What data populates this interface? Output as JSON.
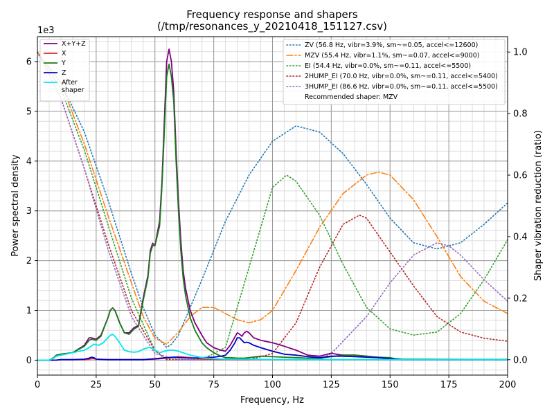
{
  "chart_data": {
    "type": "line",
    "title": "Frequency response and shapers",
    "subtitle": "(/tmp/resonances_y_20210418_151127.csv)",
    "xlabel": "Frequency, Hz",
    "ylabel": "Power spectral density",
    "ylabel_right": "Shaper vibration reduction (ratio)",
    "y_multiplier_label": "1e3",
    "xlim": [
      0,
      200
    ],
    "ylim": [
      -0.3,
      6.5
    ],
    "ylim_right": [
      -0.05,
      1.05
    ],
    "grid": true,
    "x_ticks": [
      "0",
      "25",
      "50",
      "75",
      "100",
      "125",
      "150",
      "175",
      "200"
    ],
    "y_ticks": [
      "0",
      "1",
      "2",
      "3",
      "4",
      "5",
      "6"
    ],
    "y_ticks_right": [
      "0.0",
      "0.2",
      "0.4",
      "0.6",
      "0.8",
      "1.0"
    ],
    "legend_left_placement": "top-left",
    "legend_right_placement": "top-right",
    "psd_series": [
      {
        "name": "X+Y+Z",
        "color": "#800080",
        "x": [
          0,
          5,
          7,
          8,
          10,
          15,
          20,
          22,
          23,
          25,
          27,
          30,
          31,
          32,
          33,
          35,
          37,
          39,
          41,
          43,
          45,
          47,
          48,
          49,
          50,
          52,
          53,
          54,
          55,
          56,
          57,
          58,
          59,
          60,
          61,
          62,
          63,
          65,
          67,
          70,
          72,
          75,
          78,
          80,
          82,
          85,
          86,
          87,
          88,
          89,
          90,
          92,
          95,
          100,
          105,
          110,
          115,
          120,
          125,
          127,
          130,
          135,
          140,
          145,
          150,
          152,
          155,
          200
        ],
        "y": [
          0,
          0,
          0.05,
          0.1,
          0.12,
          0.15,
          0.3,
          0.45,
          0.45,
          0.42,
          0.5,
          0.85,
          1.0,
          1.05,
          1.0,
          0.75,
          0.55,
          0.55,
          0.65,
          0.7,
          1.25,
          1.7,
          2.2,
          2.35,
          2.3,
          2.8,
          3.6,
          4.8,
          6.0,
          6.25,
          6.0,
          5.4,
          4.2,
          3.2,
          2.4,
          1.8,
          1.45,
          1.0,
          0.75,
          0.5,
          0.35,
          0.25,
          0.2,
          0.18,
          0.3,
          0.55,
          0.52,
          0.48,
          0.55,
          0.58,
          0.55,
          0.45,
          0.4,
          0.35,
          0.28,
          0.2,
          0.1,
          0.08,
          0.14,
          0.12,
          0.1,
          0.1,
          0.08,
          0.05,
          0.04,
          0.02,
          0.01,
          0.01
        ]
      },
      {
        "name": "X",
        "color": "#d62728",
        "x": [
          0,
          8,
          10,
          20,
          22,
          23,
          24,
          25,
          30,
          40,
          45,
          50,
          55,
          58,
          60,
          65,
          70,
          75,
          80,
          90,
          100,
          110,
          120,
          150,
          200
        ],
        "y": [
          0,
          0,
          0.01,
          0.01,
          0.02,
          0.03,
          0.03,
          0.02,
          0.01,
          0.01,
          0.01,
          0.02,
          0.04,
          0.06,
          0.07,
          0.05,
          0.03,
          0.02,
          0.02,
          0.02,
          0.01,
          0.01,
          0.01,
          0.01,
          0.01
        ]
      },
      {
        "name": "Y",
        "color": "#1a7a1a",
        "x": [
          0,
          5,
          7,
          8,
          10,
          15,
          20,
          22,
          23,
          25,
          27,
          30,
          31,
          32,
          33,
          35,
          37,
          39,
          41,
          43,
          45,
          47,
          48,
          49,
          50,
          52,
          53,
          54,
          55,
          56,
          57,
          58,
          59,
          60,
          61,
          62,
          63,
          65,
          67,
          70,
          72,
          75,
          78,
          80,
          82,
          85,
          88,
          90,
          95,
          100,
          105,
          110,
          115,
          120,
          125,
          130,
          135,
          140,
          145,
          150,
          152,
          155,
          200
        ],
        "y": [
          0,
          0,
          0.05,
          0.1,
          0.12,
          0.15,
          0.28,
          0.4,
          0.42,
          0.4,
          0.48,
          0.85,
          1.0,
          1.05,
          1.0,
          0.75,
          0.55,
          0.52,
          0.62,
          0.68,
          1.2,
          1.65,
          2.15,
          2.3,
          2.3,
          2.7,
          3.5,
          4.6,
          5.7,
          5.95,
          5.7,
          5.2,
          4.0,
          3.0,
          2.2,
          1.65,
          1.3,
          0.85,
          0.6,
          0.35,
          0.25,
          0.15,
          0.08,
          0.05,
          0.05,
          0.04,
          0.04,
          0.05,
          0.08,
          0.07,
          0.06,
          0.05,
          0.04,
          0.04,
          0.07,
          0.1,
          0.1,
          0.08,
          0.06,
          0.05,
          0.03,
          0.02,
          0.01
        ]
      },
      {
        "name": "Z",
        "color": "#0000cc",
        "x": [
          0,
          8,
          10,
          15,
          20,
          22,
          23,
          24,
          25,
          30,
          40,
          45,
          50,
          55,
          58,
          60,
          65,
          70,
          75,
          78,
          80,
          82,
          84,
          85,
          86,
          87,
          88,
          89,
          90,
          92,
          95,
          100,
          105,
          110,
          115,
          120,
          125,
          130,
          135,
          140,
          145,
          150,
          155,
          200
        ],
        "y": [
          0,
          0,
          0.01,
          0.01,
          0.02,
          0.04,
          0.06,
          0.05,
          0.02,
          0.01,
          0.01,
          0.01,
          0.03,
          0.05,
          0.06,
          0.05,
          0.04,
          0.05,
          0.06,
          0.08,
          0.1,
          0.2,
          0.35,
          0.45,
          0.45,
          0.4,
          0.35,
          0.36,
          0.35,
          0.3,
          0.25,
          0.18,
          0.12,
          0.1,
          0.07,
          0.05,
          0.08,
          0.08,
          0.07,
          0.06,
          0.05,
          0.03,
          0.01,
          0.01
        ]
      },
      {
        "name": "After\nshaper",
        "color": "#00e5ee",
        "x": [
          0,
          5,
          7,
          8,
          10,
          15,
          20,
          22,
          24,
          26,
          28,
          30,
          31,
          32,
          33,
          35,
          37,
          39,
          41,
          43,
          45,
          47,
          48,
          49,
          50,
          52,
          54,
          56,
          58,
          60,
          65,
          70,
          75,
          80,
          90,
          100,
          110,
          120,
          130,
          150,
          155,
          200
        ],
        "y": [
          0,
          0,
          0.04,
          0.08,
          0.1,
          0.15,
          0.2,
          0.25,
          0.32,
          0.3,
          0.35,
          0.45,
          0.5,
          0.52,
          0.48,
          0.35,
          0.2,
          0.17,
          0.16,
          0.17,
          0.22,
          0.25,
          0.25,
          0.24,
          0.2,
          0.15,
          0.18,
          0.2,
          0.2,
          0.18,
          0.1,
          0.05,
          0.03,
          0.02,
          0.02,
          0.01,
          0.01,
          0.01,
          0.01,
          0.01,
          0.01,
          0.01
        ]
      }
    ],
    "shaper_series": [
      {
        "name": "ZV (56.8 Hz, vibr=3.9%, sm~=0.05, accel<=12600)",
        "color": "#1f77b4",
        "dash": "dotted",
        "x": [
          0,
          10,
          20,
          30,
          40,
          45,
          50,
          55,
          57,
          60,
          65,
          70,
          80,
          90,
          100,
          110,
          120,
          130,
          140,
          150,
          160,
          170,
          180,
          190,
          200
        ],
        "y": [
          1.0,
          0.9,
          0.74,
          0.52,
          0.28,
          0.17,
          0.08,
          0.04,
          0.05,
          0.08,
          0.17,
          0.26,
          0.45,
          0.6,
          0.71,
          0.76,
          0.74,
          0.67,
          0.57,
          0.46,
          0.38,
          0.36,
          0.38,
          0.44,
          0.51
        ]
      },
      {
        "name": "MZV (55.4 Hz, vibr=1.1%, sm~=0.07, accel<=9000)",
        "color": "#ff7f0e",
        "dash": "dashdot",
        "x": [
          0,
          10,
          20,
          30,
          40,
          45,
          50,
          55,
          60,
          65,
          70,
          75,
          80,
          85,
          90,
          95,
          100,
          110,
          120,
          130,
          140,
          145,
          150,
          160,
          170,
          180,
          190,
          200
        ],
        "y": [
          1.0,
          0.9,
          0.7,
          0.47,
          0.25,
          0.14,
          0.07,
          0.05,
          0.09,
          0.14,
          0.17,
          0.17,
          0.15,
          0.13,
          0.12,
          0.13,
          0.16,
          0.29,
          0.43,
          0.54,
          0.6,
          0.61,
          0.6,
          0.52,
          0.4,
          0.27,
          0.19,
          0.15
        ]
      },
      {
        "name": "EI (54.4 Hz, vibr=0.0%, sm~=0.11, accel<=5500)",
        "color": "#2ca02c",
        "dash": "dotted",
        "x": [
          0,
          10,
          20,
          30,
          40,
          50,
          55,
          60,
          70,
          80,
          90,
          100,
          106,
          110,
          120,
          130,
          140,
          150,
          160,
          170,
          180,
          190,
          200
        ],
        "y": [
          1.0,
          0.88,
          0.68,
          0.44,
          0.2,
          0.03,
          0.0,
          0.01,
          0.0,
          0.04,
          0.3,
          0.56,
          0.6,
          0.58,
          0.47,
          0.31,
          0.17,
          0.1,
          0.08,
          0.09,
          0.15,
          0.26,
          0.39
        ]
      },
      {
        "name": "2HUMP_EI (70.0 Hz, vibr=0.0%, sm~=0.11, accel<=5400)",
        "color": "#b22222",
        "dash": "dotted",
        "x": [
          0,
          10,
          20,
          30,
          40,
          50,
          55,
          60,
          70,
          80,
          90,
          100,
          110,
          120,
          130,
          137,
          140,
          150,
          160,
          170,
          180,
          190,
          200
        ],
        "y": [
          1.0,
          0.85,
          0.62,
          0.38,
          0.16,
          0.03,
          0.0,
          0.0,
          0.0,
          0.0,
          0.0,
          0.02,
          0.12,
          0.3,
          0.44,
          0.47,
          0.46,
          0.35,
          0.24,
          0.14,
          0.09,
          0.07,
          0.06
        ]
      },
      {
        "name": "3HUMP_EI (86.6 Hz, vibr=0.0%, sm~=0.11, accel<=5500)",
        "color": "#9467bd",
        "dash": "dotted",
        "x": [
          0,
          10,
          20,
          30,
          40,
          50,
          60,
          80,
          100,
          120,
          125,
          130,
          140,
          150,
          160,
          170,
          175,
          180,
          190,
          200
        ],
        "y": [
          1.0,
          0.85,
          0.62,
          0.36,
          0.14,
          0.02,
          0.0,
          0.0,
          0.0,
          0.0,
          0.02,
          0.06,
          0.14,
          0.25,
          0.34,
          0.38,
          0.37,
          0.34,
          0.26,
          0.19
        ]
      }
    ],
    "recommended_label": "Recommended shaper: MZV"
  }
}
